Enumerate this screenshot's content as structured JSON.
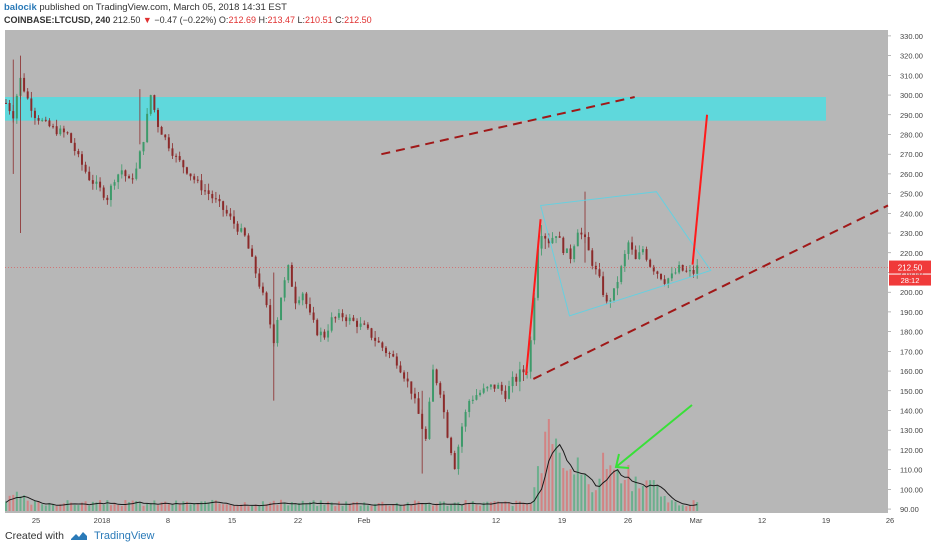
{
  "header": {
    "user": "balocik",
    "published_text": "published on TradingView.com, March 05, 2018 14:31 EST",
    "symbol": "COINBASE:LTCUSD, 240",
    "last": "212.50",
    "change_arrow": "▼",
    "change": "−0.47 (−0.22%)",
    "open_label": "O:",
    "open": "212.69",
    "high_label": "H:",
    "high": "213.47",
    "low_label": "L:",
    "low": "210.51",
    "close_label": "C:",
    "close": "212.50"
  },
  "footer": {
    "created_with": "Created with",
    "brand": "TradingView"
  },
  "chart_data": {
    "type": "candlestick",
    "y_axis": {
      "ticks": [
        "330.00",
        "320.00",
        "310.00",
        "300.00",
        "290.00",
        "280.00",
        "270.00",
        "260.00",
        "250.00",
        "240.00",
        "230.00",
        "220.00",
        "210.00",
        "200.00",
        "190.00",
        "180.00",
        "170.00",
        "160.00",
        "150.00",
        "140.00",
        "130.00",
        "120.00",
        "110.00",
        "100.00",
        "90.00"
      ],
      "range": [
        88,
        333
      ]
    },
    "x_axis": {
      "ticks": [
        "25",
        "2018",
        "8",
        "15",
        "22",
        "Feb",
        "12",
        "19",
        "26",
        "Mar",
        "12",
        "19",
        "26"
      ]
    },
    "price_label": {
      "value": "212.50",
      "countdown": "28:12"
    },
    "resistance_zone": [
      287,
      299
    ],
    "close_path": [
      [
        0,
        296
      ],
      [
        2,
        290
      ],
      [
        3,
        300
      ],
      [
        4,
        308
      ],
      [
        6,
        298
      ],
      [
        8,
        290
      ],
      [
        11,
        285
      ],
      [
        14,
        282
      ],
      [
        17,
        280
      ],
      [
        20,
        268
      ],
      [
        23,
        258
      ],
      [
        26,
        252
      ],
      [
        28,
        248
      ],
      [
        30,
        258
      ],
      [
        32,
        262
      ],
      [
        34,
        256
      ],
      [
        36,
        262
      ],
      [
        38,
        278
      ],
      [
        40,
        300
      ],
      [
        42,
        285
      ],
      [
        44,
        278
      ],
      [
        47,
        268
      ],
      [
        50,
        262
      ],
      [
        53,
        255
      ],
      [
        56,
        250
      ],
      [
        60,
        242
      ],
      [
        63,
        235
      ],
      [
        66,
        228
      ],
      [
        68,
        216
      ],
      [
        70,
        204
      ],
      [
        72,
        192
      ],
      [
        74,
        176
      ],
      [
        76,
        198
      ],
      [
        78,
        212
      ],
      [
        80,
        196
      ],
      [
        82,
        200
      ],
      [
        84,
        188
      ],
      [
        86,
        180
      ],
      [
        88,
        178
      ],
      [
        90,
        186
      ],
      [
        93,
        188
      ],
      [
        96,
        185
      ],
      [
        99,
        182
      ],
      [
        102,
        176
      ],
      [
        105,
        170
      ],
      [
        108,
        165
      ],
      [
        110,
        158
      ],
      [
        112,
        150
      ],
      [
        114,
        138
      ],
      [
        116,
        125
      ],
      [
        118,
        160
      ],
      [
        120,
        150
      ],
      [
        122,
        128
      ],
      [
        124,
        112
      ],
      [
        126,
        132
      ],
      [
        128,
        145
      ],
      [
        130,
        148
      ],
      [
        132,
        150
      ],
      [
        134,
        152
      ],
      [
        136,
        152
      ],
      [
        138,
        148
      ],
      [
        140,
        155
      ],
      [
        142,
        158
      ],
      [
        144,
        162
      ],
      [
        145,
        175
      ],
      [
        146,
        200
      ],
      [
        147,
        225
      ],
      [
        148,
        232
      ],
      [
        150,
        226
      ],
      [
        152,
        230
      ],
      [
        154,
        222
      ],
      [
        156,
        218
      ],
      [
        158,
        232
      ],
      [
        160,
        226
      ],
      [
        162,
        215
      ],
      [
        164,
        206
      ],
      [
        166,
        194
      ],
      [
        168,
        200
      ],
      [
        170,
        212
      ],
      [
        172,
        225
      ],
      [
        174,
        216
      ],
      [
        176,
        222
      ],
      [
        178,
        214
      ],
      [
        180,
        210
      ],
      [
        182,
        206
      ],
      [
        184,
        208
      ],
      [
        186,
        212
      ],
      [
        188,
        210
      ],
      [
        190,
        210
      ],
      [
        191,
        212.5
      ]
    ],
    "x_max_bars": 244,
    "volume_peaks": [
      [
        150,
        1.0
      ],
      [
        153,
        0.5
      ],
      [
        158,
        0.55
      ],
      [
        166,
        0.7
      ],
      [
        172,
        0.45
      ],
      [
        178,
        0.35
      ]
    ],
    "volume_arrow": "green",
    "annotations": [
      "parallel channel (dashed)",
      "flag (light blue)",
      "projection (red)"
    ]
  },
  "colors": {
    "plot_bg": "#b7b7b7",
    "up": "#3d9a6a",
    "down": "#8b2a2a",
    "zone": "#5fd8dc",
    "channel": "#a01818",
    "projection": "#ff1a1a",
    "flag": "#66d0e0",
    "volume_ma": "#1a1a1a",
    "volume_ma2": "#e0b040",
    "arrow": "#38e038",
    "price_label": "#f03a3a"
  }
}
